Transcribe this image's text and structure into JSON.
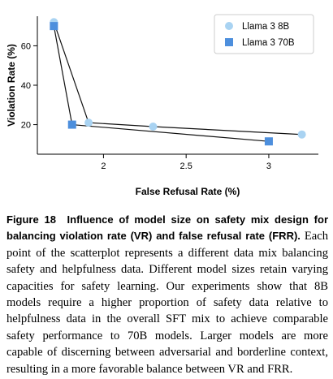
{
  "chart_data": {
    "type": "scatter",
    "xlabel": "False Refusal Rate (%)",
    "ylabel": "Violation Rate (%)",
    "xlim": [
      1.6,
      3.3
    ],
    "ylim": [
      5,
      75
    ],
    "xticks": [
      2,
      2.5,
      3
    ],
    "yticks": [
      20,
      40,
      60
    ],
    "grid": false,
    "legend_position": "top-right",
    "series": [
      {
        "name": "Llama 3 8B",
        "marker": "circle",
        "color": "#a9d3f2",
        "points": [
          [
            1.7,
            72
          ],
          [
            1.91,
            21
          ],
          [
            2.3,
            19
          ],
          [
            3.2,
            15
          ]
        ]
      },
      {
        "name": "Llama 3 70B",
        "marker": "square",
        "color": "#4d8fdd",
        "points": [
          [
            1.7,
            70
          ],
          [
            1.81,
            20
          ],
          [
            3.0,
            11.5
          ]
        ]
      }
    ]
  },
  "caption": {
    "label": "Figure 18",
    "bold_text": "Influence of model size on safety mix design for balancing violation rate (VR) and false refusal rate (FRR).",
    "body": "Each point of the scatterplot represents a different data mix balancing safety and helpfulness data. Different model sizes retain varying capacities for safety learning. Our experiments show that 8B models require a higher proportion of safety data relative to helpfulness data in the overall SFT mix to achieve comparable safety performance to 70B models. Larger models are more capable of discerning between adversarial and borderline context, resulting in a more favorable balance between VR and FRR."
  }
}
